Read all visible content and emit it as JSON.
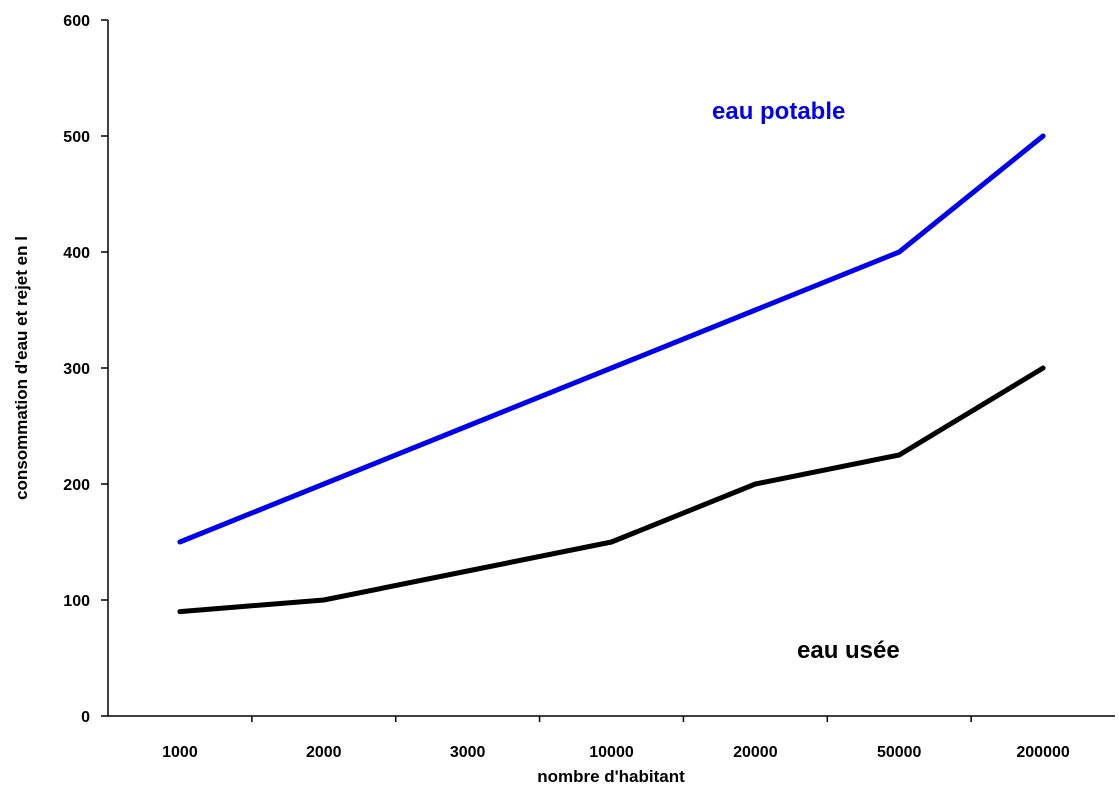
{
  "chart_data": {
    "type": "line",
    "categories": [
      "1000",
      "2000",
      "3000",
      "10000",
      "20000",
      "50000",
      "200000"
    ],
    "series": [
      {
        "name": "eau potable",
        "color": "#0000ee",
        "values": [
          150,
          200,
          250,
          300,
          350,
          400,
          500
        ]
      },
      {
        "name": "eau usée",
        "color": "#000000",
        "values": [
          90,
          100,
          125,
          150,
          200,
          225,
          300
        ]
      }
    ],
    "xlabel": "nombre d'habitant",
    "ylabel": "consommation d'eau et rejet en l",
    "ylim": [
      0,
      600
    ],
    "yticks": [
      0,
      100,
      200,
      300,
      400,
      500,
      600
    ],
    "grid": false,
    "legend": "labels placed next to each line"
  }
}
